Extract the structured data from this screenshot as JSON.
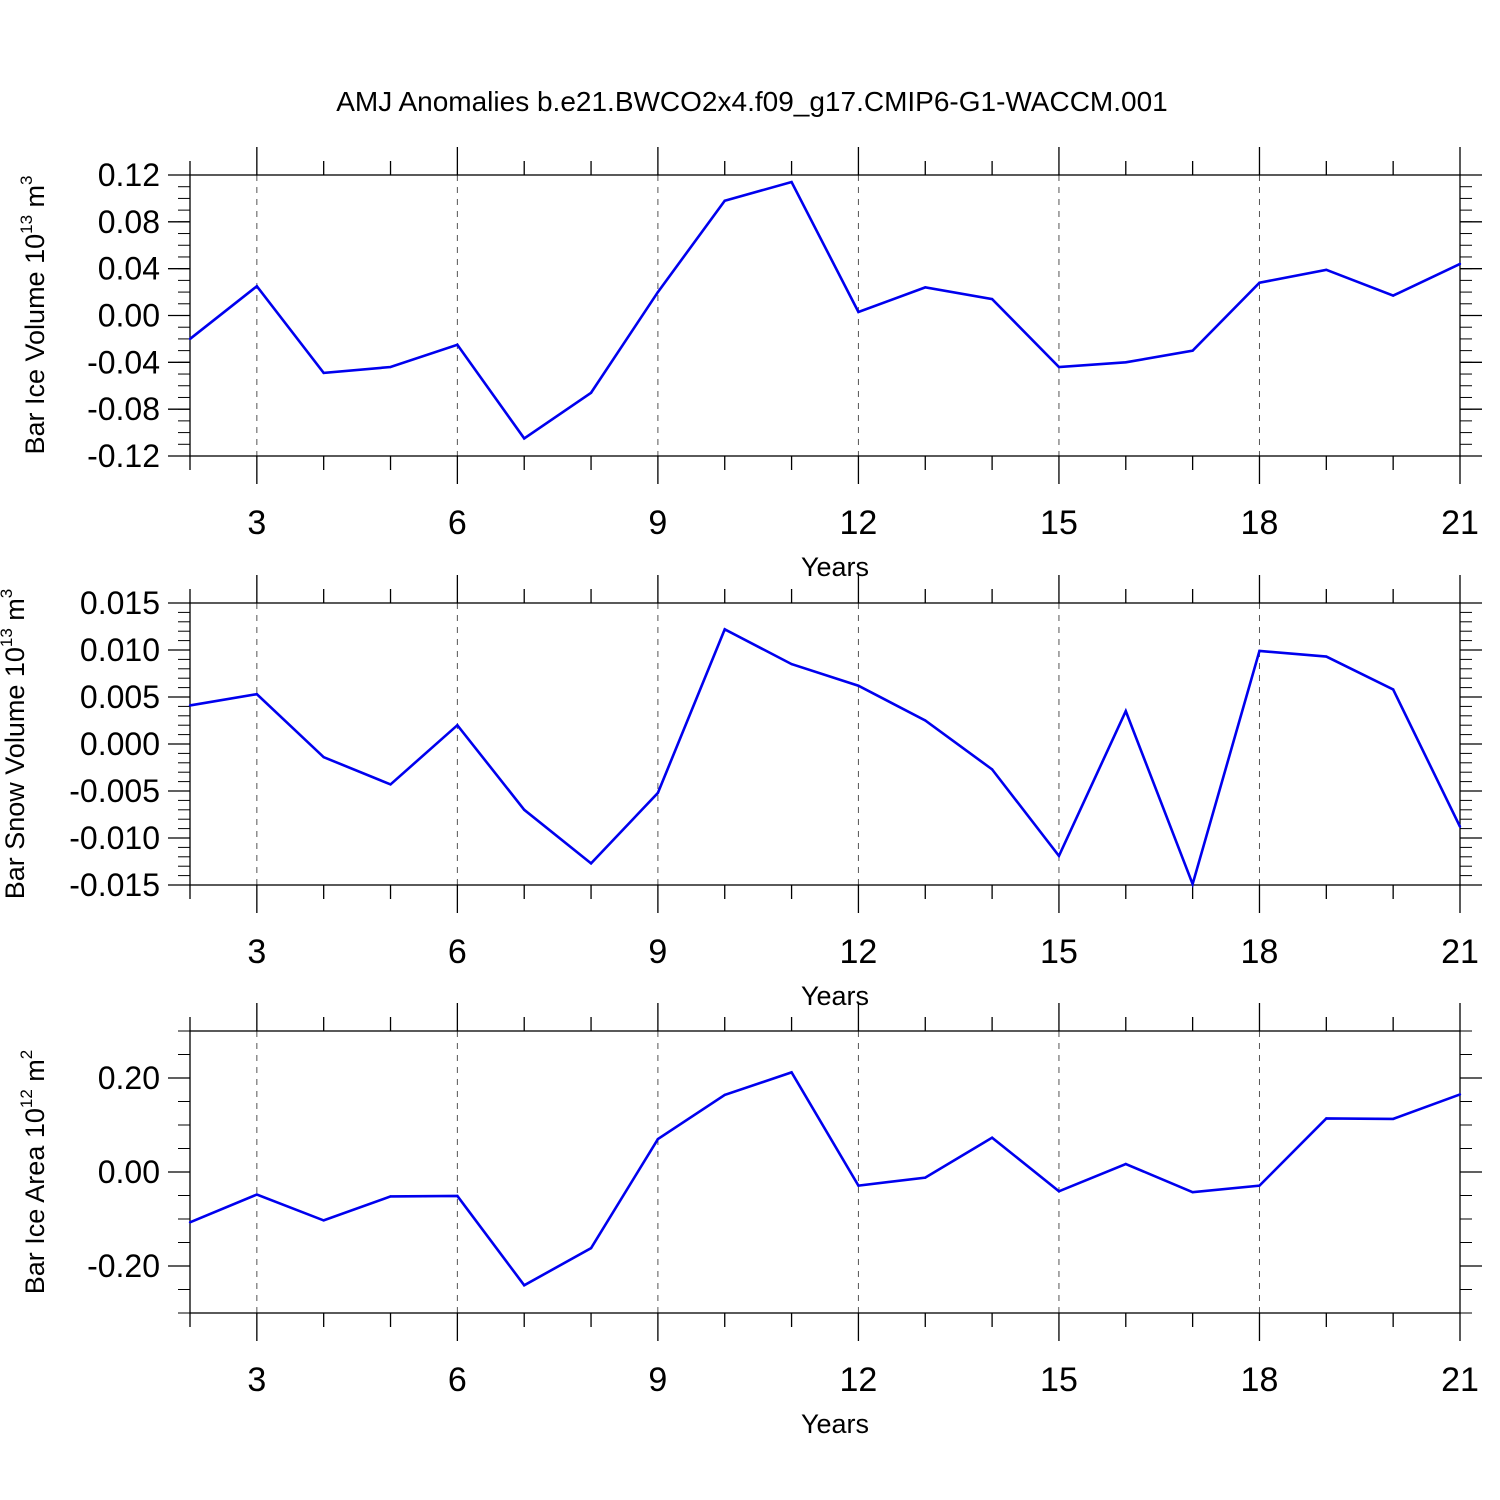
{
  "title": "AMJ Anomalies b.e21.BWCO2x4.f09_g17.CMIP6-G1-WACCM.001",
  "colors": {
    "line": "#0000ee",
    "axis": "#000000",
    "grid": "#555555"
  },
  "chart_data": [
    {
      "type": "line",
      "title": "",
      "xlabel": "Years",
      "ylabel_text": "Bar Ice Volume 10",
      "ylabel_exp": "13",
      "ylabel_unit": " m",
      "ylabel_unit_exp": "3",
      "xlim": [
        2,
        21
      ],
      "ylim": [
        -0.12,
        0.12
      ],
      "xticks": [
        "3",
        "6",
        "9",
        "12",
        "15",
        "18",
        "21"
      ],
      "yticks": [
        "0.12",
        "0.08",
        "0.04",
        "0.00",
        "-0.04",
        "-0.08",
        "-0.12"
      ],
      "ytick_values": [
        0.12,
        0.08,
        0.04,
        0.0,
        -0.04,
        -0.08,
        -0.12
      ],
      "ygrid_minor_step": 0.01,
      "grid_x": true,
      "x": [
        2,
        3,
        4,
        5,
        6,
        7,
        8,
        9,
        10,
        11,
        12,
        13,
        14,
        15,
        16,
        17,
        18,
        19,
        20,
        21
      ],
      "series": [
        {
          "values": [
            -0.02,
            0.025,
            -0.049,
            -0.044,
            -0.025,
            -0.105,
            -0.066,
            0.02,
            0.098,
            0.114,
            0.003,
            0.024,
            0.014,
            -0.044,
            -0.04,
            -0.03,
            0.028,
            0.039,
            0.017,
            0.044
          ]
        }
      ]
    },
    {
      "type": "line",
      "title": "",
      "xlabel": "Years",
      "ylabel_text": "Bar Snow Volume 10",
      "ylabel_exp": "13",
      "ylabel_unit": " m",
      "ylabel_unit_exp": "3",
      "xlim": [
        2,
        21
      ],
      "ylim": [
        -0.015,
        0.015
      ],
      "xticks": [
        "3",
        "6",
        "9",
        "12",
        "15",
        "18",
        "21"
      ],
      "yticks": [
        "0.015",
        "0.010",
        "0.005",
        "0.000",
        "-0.005",
        "-0.010",
        "-0.015"
      ],
      "ytick_values": [
        0.015,
        0.01,
        0.005,
        0.0,
        -0.005,
        -0.01,
        -0.015
      ],
      "ygrid_minor_step": 0.001,
      "grid_x": true,
      "x": [
        2,
        3,
        4,
        5,
        6,
        7,
        8,
        9,
        10,
        11,
        12,
        13,
        14,
        15,
        16,
        17,
        18,
        19,
        20,
        21
      ],
      "series": [
        {
          "values": [
            0.0041,
            0.0053,
            -0.0014,
            -0.0043,
            0.002,
            -0.007,
            -0.0127,
            -0.0052,
            0.0122,
            0.0085,
            0.0062,
            0.0025,
            -0.0027,
            -0.0119,
            0.0035,
            -0.0149,
            0.0099,
            0.0093,
            0.0058,
            -0.0088
          ]
        }
      ]
    },
    {
      "type": "line",
      "title": "",
      "xlabel": "Years",
      "ylabel_text": "Bar Ice Area 10",
      "ylabel_exp": "12",
      "ylabel_unit": " m",
      "ylabel_unit_exp": "2",
      "xlim": [
        2,
        21
      ],
      "ylim": [
        -0.3,
        0.3
      ],
      "xticks": [
        "3",
        "6",
        "9",
        "12",
        "15",
        "18",
        "21"
      ],
      "yticks": [
        "0.20",
        "0.00",
        "-0.20"
      ],
      "ytick_values": [
        0.2,
        0.0,
        -0.2
      ],
      "ygrid_minor_step": 0.05,
      "grid_x": true,
      "x": [
        2,
        3,
        4,
        5,
        6,
        7,
        8,
        9,
        10,
        11,
        12,
        13,
        14,
        15,
        16,
        17,
        18,
        19,
        20,
        21
      ],
      "series": [
        {
          "values": [
            -0.107,
            -0.048,
            -0.103,
            -0.052,
            -0.051,
            -0.241,
            -0.162,
            0.07,
            0.164,
            0.212,
            -0.029,
            -0.012,
            0.073,
            -0.041,
            0.017,
            -0.043,
            -0.029,
            0.114,
            0.113,
            0.165
          ]
        }
      ]
    }
  ]
}
